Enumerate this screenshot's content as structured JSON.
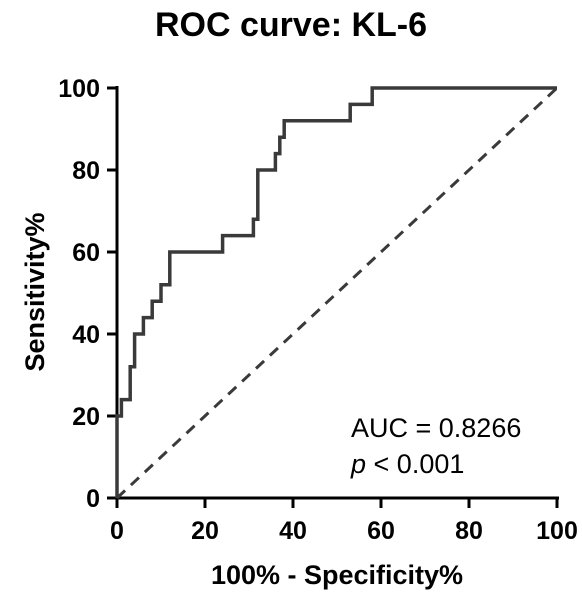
{
  "chart_data": {
    "type": "line",
    "title": "ROC curve: KL-6",
    "xlabel": "100% - Specificity%",
    "ylabel": "Sensitivity%",
    "xlim": [
      0,
      100
    ],
    "ylim": [
      0,
      100
    ],
    "xticks": [
      0,
      20,
      40,
      60,
      80,
      100
    ],
    "yticks": [
      0,
      20,
      40,
      60,
      80,
      100
    ],
    "grid": false,
    "series": [
      {
        "style": "solid",
        "color": "#3a3a3a",
        "x": [
          0,
          0,
          1,
          1,
          3,
          3,
          4,
          4,
          6,
          6,
          8,
          8,
          10,
          10,
          12,
          12,
          24,
          24,
          31,
          31,
          32,
          32,
          36,
          36,
          37,
          37,
          38,
          38,
          53,
          53,
          58,
          58,
          100
        ],
        "y": [
          0,
          20,
          20,
          24,
          24,
          32,
          32,
          40,
          40,
          44,
          44,
          48,
          48,
          52,
          52,
          60,
          60,
          64,
          64,
          68,
          68,
          80,
          80,
          84,
          84,
          88,
          88,
          92,
          92,
          96,
          96,
          100,
          100
        ]
      },
      {
        "style": "dashed",
        "color": "#3a3a3a",
        "x": [
          0,
          100
        ],
        "y": [
          0,
          100
        ]
      }
    ],
    "annotations": {
      "auc": "AUC = 0.8266",
      "p_symbol": "p",
      "p_rest": " < 0.001"
    }
  }
}
